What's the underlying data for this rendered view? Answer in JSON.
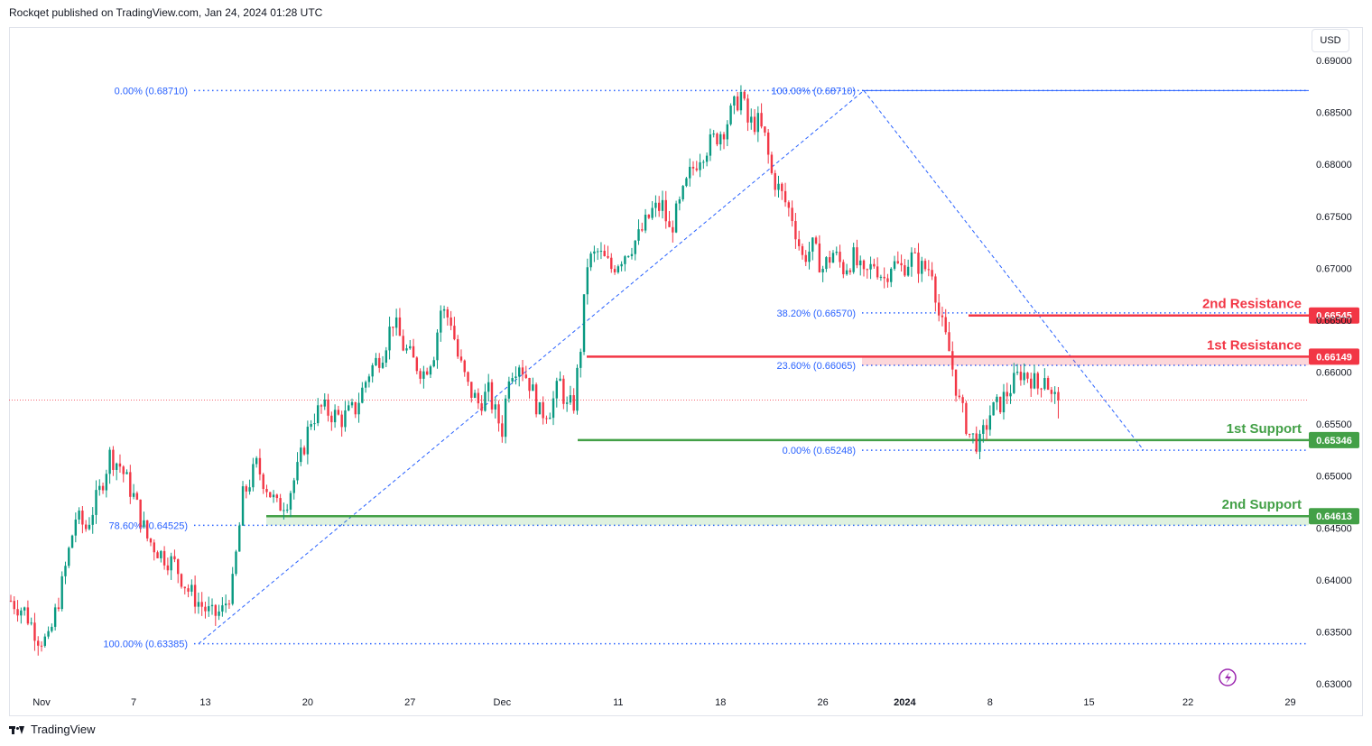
{
  "header": {
    "published_text": "Rockqet published on TradingView.com, Jan 24, 2024 01:28 UTC"
  },
  "footer": {
    "logo_text": "TradingView"
  },
  "toolbar": {
    "currency": "USD"
  },
  "colors": {
    "up": "#089981",
    "down": "#f23645",
    "resistance": "#f23645",
    "support": "#43a047",
    "fib": "#2962ff",
    "grid_text": "#131722"
  },
  "chart_data": {
    "type": "candlestick",
    "symbol_quote": "USD",
    "ylim": [
      0.629,
      0.6915
    ],
    "y_ticks": [
      0.63,
      0.635,
      0.64,
      0.645,
      0.65,
      0.655,
      0.66,
      0.665,
      0.67,
      0.675,
      0.68,
      0.685,
      0.69
    ],
    "x_ticks": [
      "Nov",
      "7",
      "13",
      "20",
      "27",
      "Dec",
      "11",
      "18",
      "26",
      "2024",
      "8",
      "15",
      "22",
      "29"
    ],
    "levels": [
      {
        "label": "2nd Resistance",
        "value": 0.66545,
        "tag": "0.66545",
        "kind": "resistance"
      },
      {
        "label": "1st Resistance",
        "value": 0.66149,
        "tag": "0.66149",
        "kind": "resistance"
      },
      {
        "label": "1st Support",
        "value": 0.65346,
        "tag": "0.65346",
        "kind": "support"
      },
      {
        "label": "2nd Support",
        "value": 0.64613,
        "tag": "0.64613",
        "kind": "support"
      }
    ],
    "fib_left": [
      {
        "label": "0.00% (0.68710)",
        "value": 0.6871
      },
      {
        "label": "78.60% (0.64525)",
        "value": 0.64525
      },
      {
        "label": "100.00% (0.63385)",
        "value": 0.63385
      }
    ],
    "fib_right": [
      {
        "label": "100.00% (0.68710)",
        "value": 0.6871
      },
      {
        "label": "38.20% (0.66570)",
        "value": 0.6657
      },
      {
        "label": "23.60% (0.66065)",
        "value": 0.66065
      },
      {
        "label": "0.00% (0.65248)",
        "value": 0.65248
      }
    ],
    "last_price": 0.6573,
    "price_path": [
      [
        0,
        0.638
      ],
      [
        4,
        0.637
      ],
      [
        8,
        0.6345
      ],
      [
        11,
        0.634
      ],
      [
        15,
        0.6395
      ],
      [
        19,
        0.646
      ],
      [
        22,
        0.645
      ],
      [
        26,
        0.6485
      ],
      [
        29,
        0.652
      ],
      [
        32,
        0.651
      ],
      [
        36,
        0.648
      ],
      [
        40,
        0.644
      ],
      [
        44,
        0.6425
      ],
      [
        48,
        0.6415
      ],
      [
        52,
        0.639
      ],
      [
        56,
        0.6375
      ],
      [
        59,
        0.6365
      ],
      [
        62,
        0.637
      ],
      [
        65,
        0.6395
      ],
      [
        68,
        0.648
      ],
      [
        72,
        0.651
      ],
      [
        75,
        0.649
      ],
      [
        78,
        0.647
      ],
      [
        81,
        0.6478
      ],
      [
        84,
        0.6505
      ],
      [
        88,
        0.6555
      ],
      [
        91,
        0.6565
      ],
      [
        94,
        0.656
      ],
      [
        97,
        0.6555
      ],
      [
        101,
        0.6565
      ],
      [
        105,
        0.66
      ],
      [
        109,
        0.662
      ],
      [
        112,
        0.665
      ],
      [
        115,
        0.6625
      ],
      [
        118,
        0.661
      ],
      [
        121,
        0.66
      ],
      [
        124,
        0.662
      ],
      [
        126,
        0.666
      ],
      [
        129,
        0.665
      ],
      [
        131,
        0.6615
      ],
      [
        134,
        0.6585
      ],
      [
        137,
        0.657
      ],
      [
        140,
        0.658
      ],
      [
        142,
        0.656
      ],
      [
        144,
        0.6545
      ],
      [
        146,
        0.66
      ],
      [
        149,
        0.661
      ],
      [
        152,
        0.659
      ],
      [
        155,
        0.656
      ],
      [
        158,
        0.6565
      ],
      [
        161,
        0.659
      ],
      [
        163,
        0.6565
      ],
      [
        165,
        0.657
      ],
      [
        167,
        0.6625
      ],
      [
        169,
        0.6705
      ],
      [
        172,
        0.6715
      ],
      [
        176,
        0.67
      ],
      [
        180,
        0.6715
      ],
      [
        184,
        0.673
      ],
      [
        188,
        0.6755
      ],
      [
        191,
        0.676
      ],
      [
        193,
        0.6735
      ],
      [
        196,
        0.676
      ],
      [
        199,
        0.679
      ],
      [
        202,
        0.681
      ],
      [
        205,
        0.682
      ],
      [
        209,
        0.6835
      ],
      [
        212,
        0.6855
      ],
      [
        214,
        0.6868
      ],
      [
        216,
        0.684
      ],
      [
        219,
        0.684
      ],
      [
        221,
        0.6825
      ],
      [
        223,
        0.679
      ],
      [
        226,
        0.677
      ],
      [
        229,
        0.675
      ],
      [
        232,
        0.671
      ],
      [
        235,
        0.672
      ],
      [
        238,
        0.67
      ],
      [
        241,
        0.6715
      ],
      [
        244,
        0.67
      ],
      [
        247,
        0.671
      ],
      [
        250,
        0.669
      ],
      [
        253,
        0.6705
      ],
      [
        256,
        0.669
      ],
      [
        258,
        0.6705
      ],
      [
        261,
        0.67
      ],
      [
        264,
        0.671
      ],
      [
        267,
        0.67
      ],
      [
        270,
        0.67
      ],
      [
        272,
        0.6655
      ],
      [
        275,
        0.662
      ],
      [
        278,
        0.657
      ],
      [
        281,
        0.654
      ],
      [
        284,
        0.653
      ],
      [
        287,
        0.656
      ],
      [
        290,
        0.657
      ],
      [
        293,
        0.6585
      ],
      [
        296,
        0.66
      ],
      [
        299,
        0.6595
      ],
      [
        301,
        0.6585
      ],
      [
        303,
        0.66
      ],
      [
        305,
        0.6575
      ],
      [
        307,
        0.6573
      ]
    ]
  }
}
